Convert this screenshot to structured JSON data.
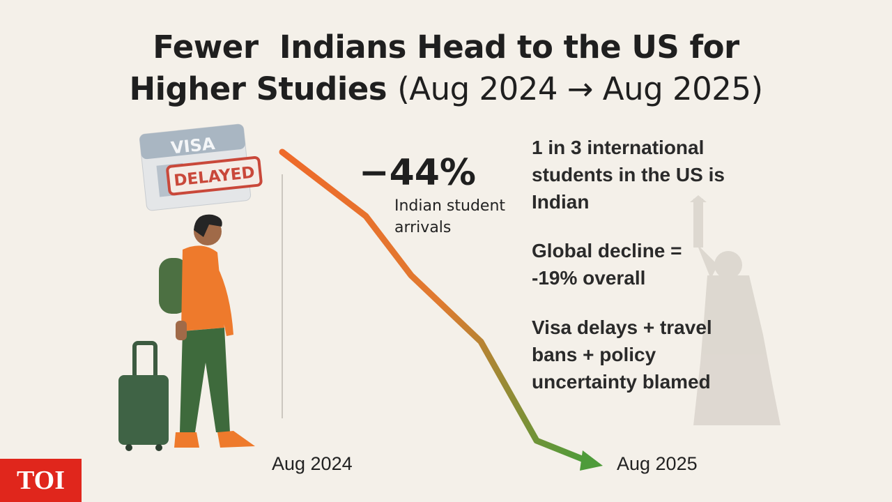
{
  "title": {
    "line1": "Fewer  Indians Head to the US for",
    "line2": "Higher Studies",
    "period": "(Aug 2024 → Aug 2025)"
  },
  "visa_card": {
    "label": "VISA",
    "stamp": "DELAYED"
  },
  "highlight": {
    "figure": "−44%",
    "caption": "Indian student arrivals"
  },
  "facts": [
    "1 in 3 international students in the US is Indian",
    "Global decline = -19% overall",
    "Visa delays + travel bans + policy uncertainty blamed"
  ],
  "timeline": {
    "start": "Aug 2024",
    "end": "Aug 2025"
  },
  "logo": "TOI"
}
